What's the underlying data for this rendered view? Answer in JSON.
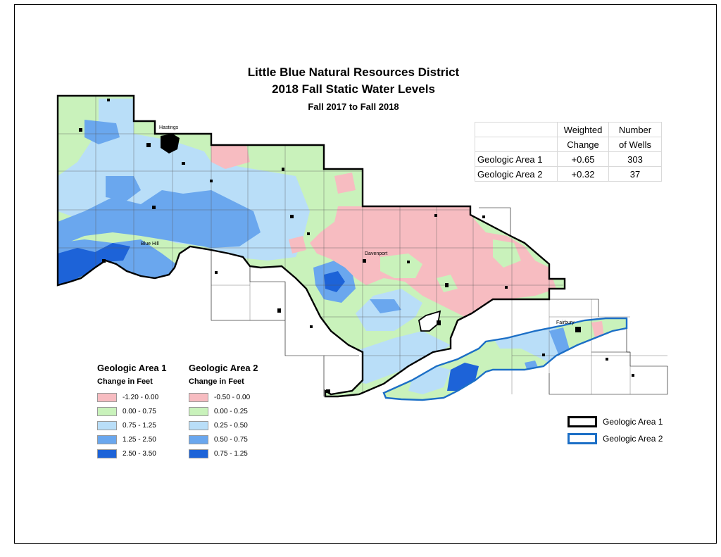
{
  "title": {
    "line1": "Little Blue Natural Resources District",
    "line2": "2018 Fall Static Water Levels",
    "line3": "Fall 2017 to Fall 2018"
  },
  "stats_table": {
    "headers": [
      [
        "",
        "Weighted",
        "Number"
      ],
      [
        "",
        "Change",
        "of Wells"
      ]
    ],
    "rows": [
      {
        "area": "Geologic Area 1",
        "change": "+0.65",
        "wells": "303"
      },
      {
        "area": "Geologic Area 2",
        "change": "+0.32",
        "wells": "37"
      }
    ]
  },
  "towns": [
    "Hastings",
    "Blue Hill",
    "Davenport",
    "Fairbury"
  ],
  "legend_area1": {
    "title": "Geologic Area 1",
    "subtitle": "Change in Feet",
    "items": [
      {
        "label": "-1.20 - 0.00",
        "color": "#f7bcc1"
      },
      {
        "label": "0.00 - 0.75",
        "color": "#c9f2bb"
      },
      {
        "label": "0.75 - 1.25",
        "color": "#b9def8"
      },
      {
        "label": "1.25 - 2.50",
        "color": "#6aa7ee"
      },
      {
        "label": "2.50 - 3.50",
        "color": "#1d63d8"
      }
    ]
  },
  "legend_area2": {
    "title": "Geologic Area 2",
    "subtitle": "Change in Feet",
    "items": [
      {
        "label": "-0.50 - 0.00",
        "color": "#f7bcc1"
      },
      {
        "label": "0.00 - 0.25",
        "color": "#c9f2bb"
      },
      {
        "label": "0.25 - 0.50",
        "color": "#b9def8"
      },
      {
        "label": "0.50 - 0.75",
        "color": "#6aa7ee"
      },
      {
        "label": "0.75 - 1.25",
        "color": "#1d63d8"
      }
    ]
  },
  "boundary_key": [
    {
      "label": "Geologic Area 1",
      "color": "#000000"
    },
    {
      "label": "Geologic Area 2",
      "color": "#1c6fc6"
    }
  ]
}
